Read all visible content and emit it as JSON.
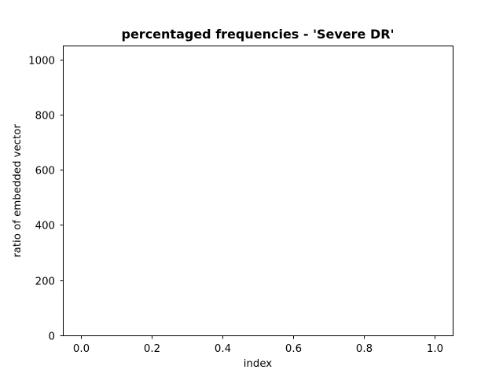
{
  "chart_data": {
    "type": "bar",
    "title": "percentaged frequencies - 'Severe DR'",
    "xlabel": "index",
    "ylabel": "ratio of embedded vector",
    "xlim": [
      -0.05,
      1.05
    ],
    "ylim": [
      0,
      1050
    ],
    "xticks": [
      0.0,
      0.2,
      0.4,
      0.6,
      0.8,
      1.0
    ],
    "xtick_labels": [
      "0.0",
      "0.2",
      "0.4",
      "0.6",
      "0.8",
      "1.0"
    ],
    "yticks": [
      0,
      200,
      400,
      600,
      800,
      1000
    ],
    "ytick_labels": [
      "0",
      "200",
      "400",
      "600",
      "800",
      "1000"
    ],
    "grid": false,
    "series": [],
    "colors": {
      "axis": "#000000",
      "background": "#ffffff"
    }
  }
}
